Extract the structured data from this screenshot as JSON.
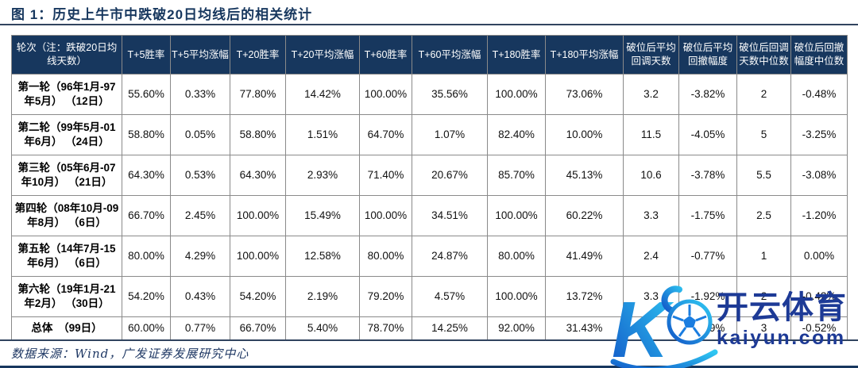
{
  "figure": {
    "title": "图 1：历史上牛市中跌破20日均线后的相关统计",
    "source_note": "数据来源：Wind，广发证券发展研究中心"
  },
  "colors": {
    "header_bg": "#17375e",
    "accent_navy": "#17375e",
    "watermark_text_blue": "#1d3a96",
    "watermark_gradient_start": "#1258c8",
    "watermark_gradient_end": "#2fc7f2"
  },
  "table": {
    "headers": [
      "轮次（注：跌破20日均线天数）",
      "T+5胜率",
      "T+5平均涨幅",
      "T+20胜率",
      "T+20平均涨幅",
      "T+60胜率",
      "T+60平均涨幅",
      "T+180胜率",
      "T+180平均涨幅",
      "破位后平均回调天数",
      "破位后平均回撤幅度",
      "破位后回调天数中位数",
      "破位后回撤幅度中位数"
    ],
    "rows": [
      {
        "label": "第一轮（96年1月-97年5月） （12日）",
        "values": [
          "55.60%",
          "0.33%",
          "77.80%",
          "14.42%",
          "100.00%",
          "35.56%",
          "100.00%",
          "73.06%",
          "3.2",
          "-3.82%",
          "2",
          "-0.48%"
        ]
      },
      {
        "label": "第二轮（99年5月-01年6月） （24日）",
        "values": [
          "58.80%",
          "0.05%",
          "58.80%",
          "1.51%",
          "64.70%",
          "1.07%",
          "82.40%",
          "10.00%",
          "11.5",
          "-4.05%",
          "5",
          "-3.25%"
        ]
      },
      {
        "label": "第三轮（05年6月-07年10月） （21日）",
        "values": [
          "64.30%",
          "0.53%",
          "64.30%",
          "2.93%",
          "71.40%",
          "20.67%",
          "85.70%",
          "45.13%",
          "10.6",
          "-3.78%",
          "5.5",
          "-3.08%"
        ]
      },
      {
        "label": "第四轮（08年10月-09年8月） （6日）",
        "values": [
          "66.70%",
          "2.45%",
          "100.00%",
          "15.49%",
          "100.00%",
          "34.51%",
          "100.00%",
          "60.22%",
          "3.3",
          "-1.75%",
          "2.5",
          "-1.20%"
        ]
      },
      {
        "label": "第五轮（14年7月-15年6月） （6日）",
        "values": [
          "80.00%",
          "4.29%",
          "100.00%",
          "12.58%",
          "80.00%",
          "24.87%",
          "80.00%",
          "41.49%",
          "2.4",
          "-0.77%",
          "1",
          "0.00%"
        ]
      },
      {
        "label": "第六轮（19年1月-21年2月） （30日）",
        "values": [
          "54.20%",
          "0.43%",
          "54.20%",
          "2.19%",
          "79.20%",
          "4.57%",
          "100.00%",
          "13.72%",
          "3.3",
          "-1.92%",
          "2",
          "-0.42%"
        ]
      },
      {
        "label": "总体　（99日）",
        "values": [
          "60.00%",
          "0.77%",
          "66.70%",
          "5.40%",
          "78.70%",
          "14.25%",
          "92.00%",
          "31.43%",
          "",
          "-2.89%",
          "3",
          "-0.52%"
        ],
        "total": true
      }
    ]
  },
  "watermark": {
    "brand": "开云体育",
    "domain": "kaiyun.com",
    "logo_icon": "k-football-logo"
  }
}
